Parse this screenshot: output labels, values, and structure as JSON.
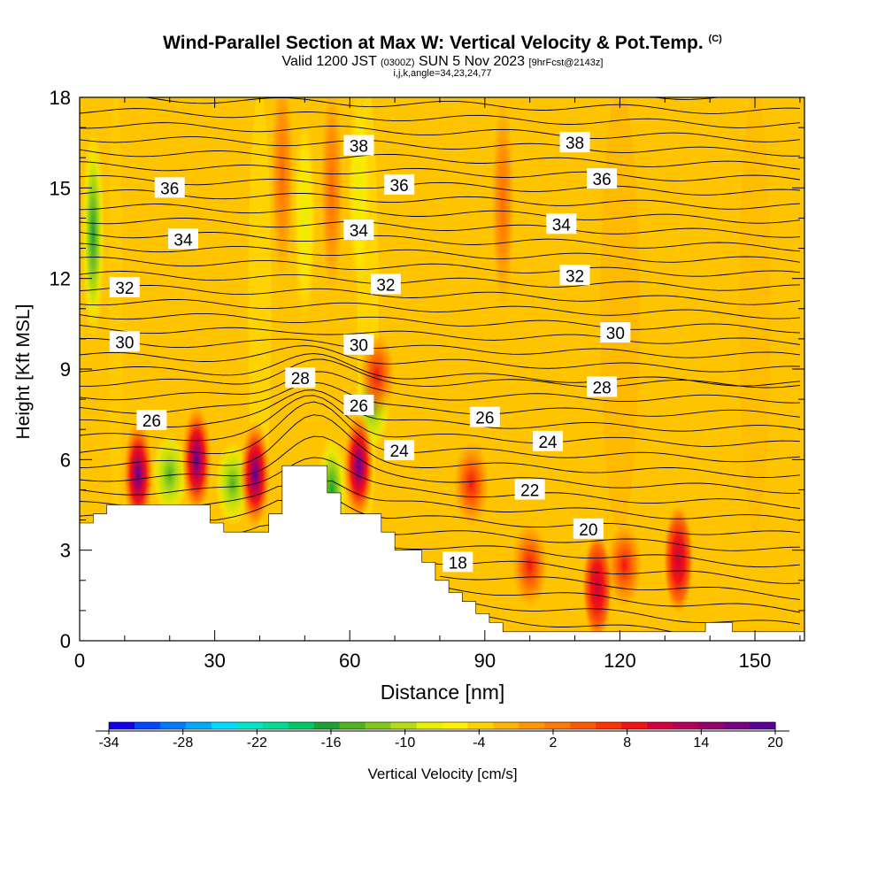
{
  "header": {
    "title": "Wind-Parallel Section at Max W: Vertical Velocity & Pot.Temp.",
    "copyright": "(C)",
    "valid_prefix": "Valid 1200 JST",
    "valid_utc": "(0300Z)",
    "valid_date": "SUN 5 Nov 2023",
    "forecast_info": "[9hrFcst@2143z]",
    "params": "i,j,k,angle=34,23,24,77"
  },
  "chart_data": {
    "type": "heatmap",
    "xlabel": "Distance [nm]",
    "ylabel": "Height [Kft MSL]",
    "xlim": [
      0,
      161
    ],
    "ylim": [
      0,
      18
    ],
    "x_ticks": [
      "0",
      "30",
      "60",
      "90",
      "120",
      "150"
    ],
    "x_tick_values": [
      0,
      30,
      60,
      90,
      120,
      150
    ],
    "y_ticks": [
      "0",
      "3",
      "6",
      "9",
      "12",
      "15",
      "18"
    ],
    "y_tick_values": [
      0,
      3,
      6,
      9,
      12,
      15,
      18
    ],
    "grid": false,
    "background_field": {
      "name": "Vertical Velocity",
      "units": "cm/s",
      "dominant_range": [
        -4,
        2
      ]
    },
    "updraft_cores": [
      {
        "x": 13,
        "y": 5.5,
        "peak": 20
      },
      {
        "x": 26,
        "y": 6.0,
        "peak": 20
      },
      {
        "x": 39,
        "y": 5.5,
        "peak": 20
      },
      {
        "x": 62,
        "y": 5.8,
        "peak": 20
      },
      {
        "x": 66,
        "y": 8.8,
        "peak": 8
      },
      {
        "x": 87,
        "y": 5.2,
        "peak": 10
      },
      {
        "x": 100,
        "y": 2.5,
        "peak": 8
      },
      {
        "x": 115,
        "y": 1.8,
        "peak": 14
      },
      {
        "x": 121,
        "y": 2.5,
        "peak": 8
      },
      {
        "x": 133,
        "y": 2.7,
        "peak": 14
      },
      {
        "x": 94,
        "y": 14.5,
        "peak": 6
      },
      {
        "x": 45,
        "y": 15.5,
        "peak": 6
      },
      {
        "x": 56,
        "y": 15.0,
        "peak": 6
      }
    ],
    "downdraft_cores": [
      {
        "x": 3,
        "y": 13.5,
        "peak": -14
      },
      {
        "x": 20,
        "y": 5.5,
        "peak": -10
      },
      {
        "x": 34,
        "y": 5.2,
        "peak": -12
      },
      {
        "x": 56,
        "y": 5.0,
        "peak": -16
      },
      {
        "x": 65,
        "y": 7.8,
        "peak": -12
      },
      {
        "x": 62,
        "y": 15.0,
        "peak": -6
      },
      {
        "x": 50,
        "y": 14.0,
        "peak": -6
      }
    ],
    "theta_contours": {
      "name": "Pot.Temp.",
      "labels": [
        {
          "text": "38",
          "x": 62,
          "y": 16.4
        },
        {
          "text": "38",
          "x": 110,
          "y": 16.5
        },
        {
          "text": "36",
          "x": 20,
          "y": 15.0
        },
        {
          "text": "36",
          "x": 71,
          "y": 15.1
        },
        {
          "text": "36",
          "x": 116,
          "y": 15.3
        },
        {
          "text": "34",
          "x": 23,
          "y": 13.3
        },
        {
          "text": "34",
          "x": 62,
          "y": 13.6
        },
        {
          "text": "34",
          "x": 107,
          "y": 13.8
        },
        {
          "text": "32",
          "x": 10,
          "y": 11.7
        },
        {
          "text": "32",
          "x": 68,
          "y": 11.8
        },
        {
          "text": "32",
          "x": 110,
          "y": 12.1
        },
        {
          "text": "30",
          "x": 10,
          "y": 9.9
        },
        {
          "text": "30",
          "x": 62,
          "y": 9.8
        },
        {
          "text": "30",
          "x": 119,
          "y": 10.2
        },
        {
          "text": "28",
          "x": 49,
          "y": 8.7
        },
        {
          "text": "28",
          "x": 116,
          "y": 8.4
        },
        {
          "text": "26",
          "x": 16,
          "y": 7.3
        },
        {
          "text": "26",
          "x": 62,
          "y": 7.8
        },
        {
          "text": "26",
          "x": 90,
          "y": 7.4
        },
        {
          "text": "24",
          "x": 71,
          "y": 6.3
        },
        {
          "text": "24",
          "x": 104,
          "y": 6.6
        },
        {
          "text": "22",
          "x": 100,
          "y": 5.0
        },
        {
          "text": "20",
          "x": 113,
          "y": 3.7
        },
        {
          "text": "18",
          "x": 84,
          "y": 2.6
        }
      ]
    },
    "terrain": [
      [
        0,
        3.9
      ],
      [
        3,
        3.9
      ],
      [
        3,
        4.2
      ],
      [
        6,
        4.2
      ],
      [
        6,
        4.5
      ],
      [
        29,
        4.5
      ],
      [
        29,
        3.9
      ],
      [
        32,
        3.9
      ],
      [
        32,
        3.6
      ],
      [
        42,
        3.6
      ],
      [
        42,
        4.2
      ],
      [
        45,
        4.2
      ],
      [
        45,
        5.8
      ],
      [
        55,
        5.8
      ],
      [
        55,
        4.9
      ],
      [
        58,
        4.9
      ],
      [
        58,
        4.2
      ],
      [
        67,
        4.2
      ],
      [
        67,
        3.6
      ],
      [
        70,
        3.6
      ],
      [
        70,
        3.0
      ],
      [
        76,
        3.0
      ],
      [
        76,
        2.6
      ],
      [
        79,
        2.6
      ],
      [
        79,
        2.0
      ],
      [
        82,
        2.0
      ],
      [
        82,
        1.6
      ],
      [
        85,
        1.6
      ],
      [
        85,
        1.3
      ],
      [
        88,
        1.3
      ],
      [
        88,
        0.9
      ],
      [
        91,
        0.9
      ],
      [
        91,
        0.6
      ],
      [
        94,
        0.6
      ],
      [
        94,
        0.3
      ],
      [
        139,
        0.3
      ],
      [
        139,
        0.6
      ],
      [
        145,
        0.6
      ],
      [
        145,
        0.3
      ],
      [
        161,
        0.3
      ]
    ]
  },
  "colorbar": {
    "label": "Vertical Velocity [cm/s]",
    "tick_labels": [
      "-34",
      "-28",
      "-22",
      "-16",
      "-10",
      "-4",
      "2",
      "8",
      "14",
      "20"
    ],
    "colors": [
      "#1400e6",
      "#0046ff",
      "#0078ff",
      "#00aaff",
      "#00dcff",
      "#00e6c8",
      "#00dc96",
      "#00c864",
      "#1ea032",
      "#50b41e",
      "#82c81e",
      "#b4dc14",
      "#e6f000",
      "#fff000",
      "#ffd200",
      "#ffb400",
      "#ff9600",
      "#ff7800",
      "#ff5a00",
      "#ff3200",
      "#f01414",
      "#d2003c",
      "#b4005a",
      "#96006e",
      "#780082",
      "#5a0096"
    ]
  }
}
